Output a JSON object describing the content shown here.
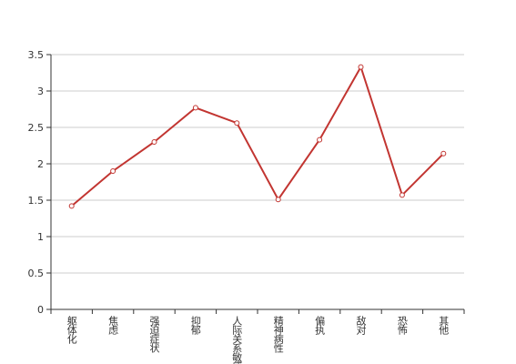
{
  "chart_data": {
    "type": "line",
    "categories": [
      "躯体化",
      "焦虑",
      "强迫症状",
      "抑郁",
      "人际关系敏感",
      "精神病性",
      "偏执",
      "敌对",
      "恐怖",
      "其他"
    ],
    "values": [
      1.42,
      1.9,
      2.3,
      2.77,
      2.56,
      1.51,
      2.33,
      3.33,
      1.57,
      2.14
    ],
    "color": "#c23531",
    "ylim": [
      0,
      3.5
    ],
    "yticks": [
      0,
      0.5,
      1,
      1.5,
      2,
      2.5,
      3,
      3.5
    ],
    "grid": true
  }
}
